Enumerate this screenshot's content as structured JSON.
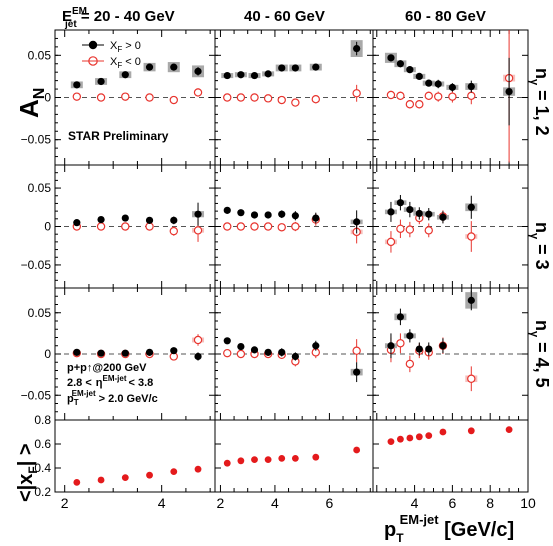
{
  "chart_data": {
    "type": "scatter",
    "column_titles": [
      {
        "main": "E",
        "sup": "EM",
        "sub": "jet",
        "rest": " = 20 - 40 GeV"
      },
      {
        "main": "40 - 60 GeV"
      },
      {
        "main": "60 - 80 GeV"
      }
    ],
    "row_labels": [
      {
        "n": "n",
        "sub": "γ",
        "rest": " = 1, 2"
      },
      {
        "n": "n",
        "sub": "γ",
        "rest": " = 3"
      },
      {
        "n": "n",
        "sub": "γ",
        "rest": " = 4, 5"
      }
    ],
    "ylabel_an": {
      "main": "A",
      "sub": "N"
    },
    "ylabel_xf": {
      "open": "<|x",
      "sub": "F",
      "close": "| >"
    },
    "xlabel": {
      "main": "p",
      "sub": "T",
      "sup": "EM-jet",
      "rest": " [GeV/c]"
    },
    "an_yticks": [
      "0.05",
      "0",
      "−0.05"
    ],
    "xf_yticks": [
      "0.8",
      "0.6",
      "0.4",
      "0.2"
    ],
    "xticks": [
      "2",
      "4",
      "6",
      "8",
      "10"
    ],
    "ylim_an": [
      -0.08,
      0.08
    ],
    "ylim_xf": [
      0.2,
      0.8
    ],
    "xlim": [
      [
        1.8,
        5.1
      ],
      [
        1.8,
        7.6
      ],
      [
        1.8,
        10.0
      ]
    ],
    "legend": {
      "pos": "X",
      "pos_sub": "F",
      "pos_rest": " > 0",
      "neg": "X",
      "neg_sub": "F",
      "neg_rest": " < 0",
      "placement": "top-left"
    },
    "annotations": {
      "preliminary": "STAR Preliminary",
      "collision": "p+p↑@200 GeV",
      "eta_low": "2.8 <",
      "eta_sym": "η",
      "eta_sup": "EM-jet",
      "eta_high": "< 3.8",
      "pt_sym": "p",
      "pt_sub": "T",
      "pt_sup": "EM-jet",
      "pt_rest": " > 2.0 GeV/c"
    },
    "colors": {
      "pos": "#000000",
      "neg": "#e8342e",
      "xf": "#e41a1c",
      "syst": "#999999"
    },
    "panels": [
      [
        {
          "pos": [
            [
              2.25,
              0.015,
              0.002,
              0.004
            ],
            [
              2.75,
              0.019,
              0.002,
              0.004
            ],
            [
              3.25,
              0.027,
              0.003,
              0.004
            ],
            [
              3.75,
              0.036,
              0.003,
              0.005
            ],
            [
              4.25,
              0.036,
              0.003,
              0.006
            ],
            [
              4.75,
              0.031,
              0.005,
              0.007
            ]
          ],
          "neg": [
            [
              2.25,
              0.001,
              0.002,
              0.001
            ],
            [
              2.75,
              0.0,
              0.002,
              0.001
            ],
            [
              3.25,
              0.001,
              0.002,
              0.001
            ],
            [
              3.75,
              0.0,
              0.002,
              0.001
            ],
            [
              4.25,
              -0.003,
              0.003,
              0.001
            ],
            [
              4.75,
              0.006,
              0.005,
              0.002
            ]
          ]
        },
        {
          "pos": [
            [
              2.25,
              0.026,
              0.002,
              0.003
            ],
            [
              2.75,
              0.027,
              0.002,
              0.003
            ],
            [
              3.25,
              0.026,
              0.003,
              0.003
            ],
            [
              3.75,
              0.028,
              0.003,
              0.003
            ],
            [
              4.25,
              0.035,
              0.003,
              0.004
            ],
            [
              4.75,
              0.035,
              0.004,
              0.004
            ],
            [
              5.5,
              0.036,
              0.004,
              0.004
            ],
            [
              7.0,
              0.058,
              0.008,
              0.01
            ]
          ],
          "neg": [
            [
              2.25,
              0.0,
              0.002,
              0.001
            ],
            [
              2.75,
              0.0,
              0.002,
              0.001
            ],
            [
              3.25,
              0.0,
              0.002,
              0.001
            ],
            [
              3.75,
              -0.001,
              0.003,
              0.001
            ],
            [
              4.25,
              -0.003,
              0.003,
              0.001
            ],
            [
              4.75,
              -0.006,
              0.004,
              0.001
            ],
            [
              5.5,
              -0.002,
              0.005,
              0.001
            ],
            [
              7.0,
              0.005,
              0.01,
              0.002
            ]
          ]
        },
        {
          "pos": [
            [
              2.75,
              0.047,
              0.004,
              0.006
            ],
            [
              3.25,
              0.04,
              0.004,
              0.004
            ],
            [
              3.75,
              0.033,
              0.004,
              0.003
            ],
            [
              4.25,
              0.025,
              0.004,
              0.003
            ],
            [
              4.75,
              0.017,
              0.004,
              0.003
            ],
            [
              5.25,
              0.016,
              0.005,
              0.003
            ],
            [
              6.0,
              0.012,
              0.005,
              0.003
            ],
            [
              7.0,
              0.013,
              0.007,
              0.004
            ],
            [
              9.0,
              0.007,
              0.04,
              0.005
            ]
          ],
          "neg": [
            [
              2.75,
              0.003,
              0.005,
              0.001
            ],
            [
              3.25,
              0.002,
              0.005,
              0.001
            ],
            [
              3.75,
              -0.008,
              0.005,
              0.002
            ],
            [
              4.25,
              -0.008,
              0.005,
              0.002
            ],
            [
              4.75,
              0.002,
              0.005,
              0.001
            ],
            [
              5.25,
              0.001,
              0.006,
              0.001
            ],
            [
              6.0,
              0.001,
              0.007,
              0.001
            ],
            [
              7.0,
              0.002,
              0.01,
              0.002
            ],
            [
              9.0,
              0.023,
              0.1,
              0.004
            ]
          ]
        }
      ],
      [
        {
          "pos": [
            [
              2.25,
              0.005,
              0.003,
              0.002
            ],
            [
              2.75,
              0.009,
              0.003,
              0.002
            ],
            [
              3.25,
              0.011,
              0.003,
              0.002
            ],
            [
              3.75,
              0.008,
              0.004,
              0.002
            ],
            [
              4.25,
              0.008,
              0.005,
              0.002
            ],
            [
              4.75,
              0.016,
              0.015,
              0.004
            ]
          ],
          "neg": [
            [
              2.25,
              0.0,
              0.003,
              0.001
            ],
            [
              2.75,
              0.0,
              0.003,
              0.001
            ],
            [
              3.25,
              0.0,
              0.003,
              0.001
            ],
            [
              3.75,
              0.0,
              0.004,
              0.001
            ],
            [
              4.25,
              -0.006,
              0.006,
              0.002
            ],
            [
              4.75,
              -0.005,
              0.015,
              0.003
            ]
          ]
        },
        {
          "pos": [
            [
              2.25,
              0.021,
              0.003,
              0.002
            ],
            [
              2.75,
              0.018,
              0.003,
              0.002
            ],
            [
              3.25,
              0.015,
              0.003,
              0.002
            ],
            [
              3.75,
              0.015,
              0.004,
              0.002
            ],
            [
              4.25,
              0.016,
              0.005,
              0.002
            ],
            [
              4.75,
              0.014,
              0.006,
              0.002
            ],
            [
              5.5,
              0.011,
              0.007,
              0.002
            ],
            [
              7.0,
              0.006,
              0.015,
              0.003
            ]
          ],
          "neg": [
            [
              2.25,
              0.0,
              0.003,
              0.001
            ],
            [
              2.75,
              0.0,
              0.003,
              0.001
            ],
            [
              3.25,
              0.0,
              0.004,
              0.001
            ],
            [
              3.75,
              0.0,
              0.004,
              0.001
            ],
            [
              4.25,
              -0.001,
              0.005,
              0.001
            ],
            [
              4.75,
              0.0,
              0.006,
              0.001
            ],
            [
              5.5,
              0.009,
              0.008,
              0.002
            ],
            [
              7.0,
              -0.007,
              0.015,
              0.003
            ]
          ]
        },
        {
          "pos": [
            [
              2.75,
              0.019,
              0.013,
              0.003
            ],
            [
              3.25,
              0.031,
              0.01,
              0.003
            ],
            [
              3.75,
              0.022,
              0.01,
              0.003
            ],
            [
              4.25,
              0.017,
              0.008,
              0.003
            ],
            [
              4.75,
              0.016,
              0.008,
              0.003
            ],
            [
              5.5,
              0.012,
              0.008,
              0.003
            ],
            [
              7.0,
              0.025,
              0.015,
              0.005
            ]
          ],
          "neg": [
            [
              2.75,
              -0.02,
              0.014,
              0.003
            ],
            [
              3.25,
              -0.003,
              0.012,
              0.002
            ],
            [
              3.75,
              -0.004,
              0.01,
              0.002
            ],
            [
              4.25,
              0.011,
              0.008,
              0.002
            ],
            [
              4.75,
              -0.005,
              0.009,
              0.002
            ],
            [
              5.5,
              0.013,
              0.008,
              0.002
            ],
            [
              7.0,
              -0.013,
              0.02,
              0.003
            ]
          ]
        }
      ],
      [
        {
          "pos": [
            [
              2.25,
              0.002,
              0.002,
              0.001
            ],
            [
              2.75,
              0.001,
              0.002,
              0.001
            ],
            [
              3.25,
              0.001,
              0.003,
              0.001
            ],
            [
              3.75,
              0.002,
              0.003,
              0.001
            ],
            [
              4.25,
              0.004,
              0.004,
              0.001
            ],
            [
              4.75,
              -0.003,
              0.005,
              0.001
            ]
          ],
          "neg": [
            [
              2.25,
              0.001,
              0.002,
              0.001
            ],
            [
              2.75,
              0.0,
              0.002,
              0.001
            ],
            [
              3.25,
              0.0,
              0.003,
              0.001
            ],
            [
              3.75,
              0.0,
              0.003,
              0.001
            ],
            [
              4.25,
              -0.003,
              0.004,
              0.001
            ],
            [
              4.75,
              0.017,
              0.007,
              0.003
            ]
          ]
        },
        {
          "pos": [
            [
              2.25,
              0.016,
              0.003,
              0.002
            ],
            [
              2.75,
              0.009,
              0.003,
              0.002
            ],
            [
              3.25,
              0.005,
              0.003,
              0.002
            ],
            [
              3.75,
              0.002,
              0.004,
              0.001
            ],
            [
              4.25,
              0.002,
              0.005,
              0.001
            ],
            [
              4.75,
              -0.003,
              0.005,
              0.001
            ],
            [
              5.5,
              0.01,
              0.006,
              0.002
            ],
            [
              7.0,
              -0.022,
              0.012,
              0.004
            ]
          ],
          "neg": [
            [
              2.25,
              0.001,
              0.003,
              0.001
            ],
            [
              2.75,
              0.0,
              0.003,
              0.001
            ],
            [
              3.25,
              0.0,
              0.003,
              0.001
            ],
            [
              3.75,
              0.0,
              0.004,
              0.001
            ],
            [
              4.25,
              -0.001,
              0.005,
              0.001
            ],
            [
              4.75,
              -0.009,
              0.006,
              0.002
            ],
            [
              5.5,
              0.002,
              0.007,
              0.001
            ],
            [
              7.0,
              0.004,
              0.014,
              0.002
            ]
          ]
        },
        {
          "pos": [
            [
              2.75,
              0.01,
              0.015,
              0.003
            ],
            [
              3.25,
              0.045,
              0.01,
              0.004
            ],
            [
              3.75,
              0.022,
              0.008,
              0.003
            ],
            [
              4.25,
              0.006,
              0.008,
              0.002
            ],
            [
              4.75,
              0.006,
              0.008,
              0.002
            ],
            [
              5.5,
              0.01,
              0.009,
              0.002
            ],
            [
              7.0,
              0.065,
              0.012,
              0.01
            ]
          ],
          "neg": [
            [
              2.75,
              0.005,
              0.015,
              0.002
            ],
            [
              3.25,
              0.013,
              0.012,
              0.002
            ],
            [
              3.75,
              -0.012,
              0.01,
              0.002
            ],
            [
              4.25,
              0.004,
              0.009,
              0.002
            ],
            [
              4.75,
              0.002,
              0.009,
              0.002
            ],
            [
              5.5,
              0.01,
              0.01,
              0.002
            ],
            [
              7.0,
              -0.03,
              0.015,
              0.004
            ]
          ]
        }
      ]
    ],
    "xf": [
      [
        [
          2.25,
          0.28
        ],
        [
          2.75,
          0.3
        ],
        [
          3.25,
          0.32
        ],
        [
          3.75,
          0.34
        ],
        [
          4.25,
          0.37
        ],
        [
          4.75,
          0.39
        ]
      ],
      [
        [
          2.25,
          0.44
        ],
        [
          2.75,
          0.46
        ],
        [
          3.25,
          0.47
        ],
        [
          3.75,
          0.47
        ],
        [
          4.25,
          0.48
        ],
        [
          4.75,
          0.48
        ],
        [
          5.5,
          0.49
        ],
        [
          7.0,
          0.55
        ]
      ],
      [
        [
          2.75,
          0.62
        ],
        [
          3.25,
          0.64
        ],
        [
          3.75,
          0.65
        ],
        [
          4.25,
          0.66
        ],
        [
          4.75,
          0.67
        ],
        [
          5.5,
          0.7
        ],
        [
          7.0,
          0.71
        ],
        [
          9.0,
          0.72
        ]
      ]
    ]
  }
}
